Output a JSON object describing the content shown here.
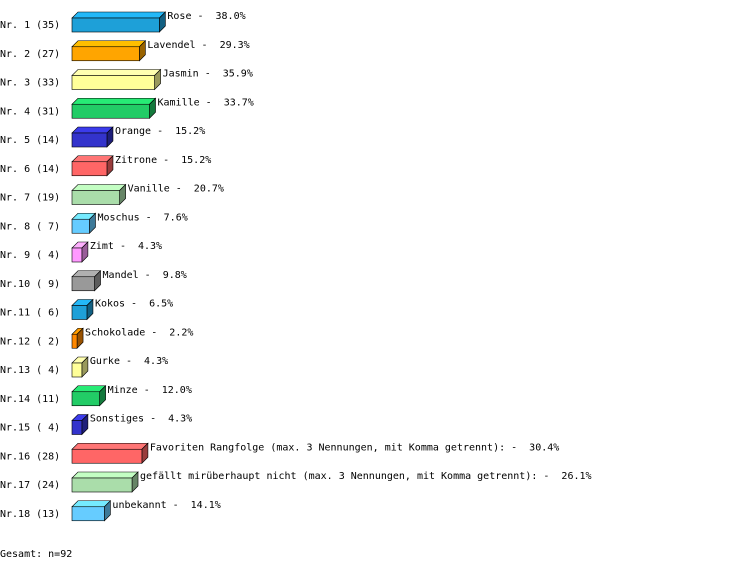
{
  "chart_data": {
    "type": "bar",
    "orientation": "horizontal",
    "categories": [
      "Nr. 1 (35)",
      "Nr. 2 (27)",
      "Nr. 3 (33)",
      "Nr. 4 (31)",
      "Nr. 5 (14)",
      "Nr. 6 (14)",
      "Nr. 7 (19)",
      "Nr. 8 ( 7)",
      "Nr. 9 ( 4)",
      "Nr.10 ( 9)",
      "Nr.11 ( 6)",
      "Nr.12 ( 2)",
      "Nr.13 ( 4)",
      "Nr.14 (11)",
      "Nr.15 ( 4)",
      "Nr.16 (28)",
      "Nr.17 (24)",
      "Nr.18 (13)"
    ],
    "names": [
      "Rose -",
      "Lavendel -",
      "Jasmin -",
      "Kamille -",
      "Orange -",
      "Zitrone -",
      "Vanille -",
      "Moschus -",
      "Zimt -",
      "Mandel -",
      "Kokos -",
      "Schokolade -",
      "Gurke -",
      "Minze -",
      "Sonstiges -",
      "Favoriten Rangfolge (max. 3 Nennungen, mit Komma getrennt): -",
      "gefällt mirüberhaupt nicht (max. 3 Nennungen, mit Komma getrennt): -",
      "unbekannt -"
    ],
    "values": [
      38.0,
      29.3,
      35.9,
      33.7,
      15.2,
      15.2,
      20.7,
      7.6,
      4.3,
      9.8,
      6.5,
      2.2,
      4.3,
      12.0,
      4.3,
      30.4,
      26.1,
      14.1
    ],
    "value_labels": [
      "38.0%",
      "29.3%",
      "35.9%",
      "33.7%",
      "15.2%",
      "15.2%",
      "20.7%",
      "7.6%",
      "4.3%",
      "9.8%",
      "6.5%",
      "2.2%",
      "4.3%",
      "12.0%",
      "4.3%",
      "30.4%",
      "26.1%",
      "14.1%"
    ],
    "colors": [
      "#1ea0d8",
      "#ffa500",
      "#ffff99",
      "#22cc66",
      "#3333cc",
      "#ff6666",
      "#aaddaa",
      "#66ccff",
      "#ff99ff",
      "#999999",
      "#1ea0d8",
      "#ff8800",
      "#ffff99",
      "#22cc66",
      "#3333cc",
      "#ff6666",
      "#aaddaa",
      "#66ccff"
    ],
    "footer": "Gesamt: n=92"
  }
}
